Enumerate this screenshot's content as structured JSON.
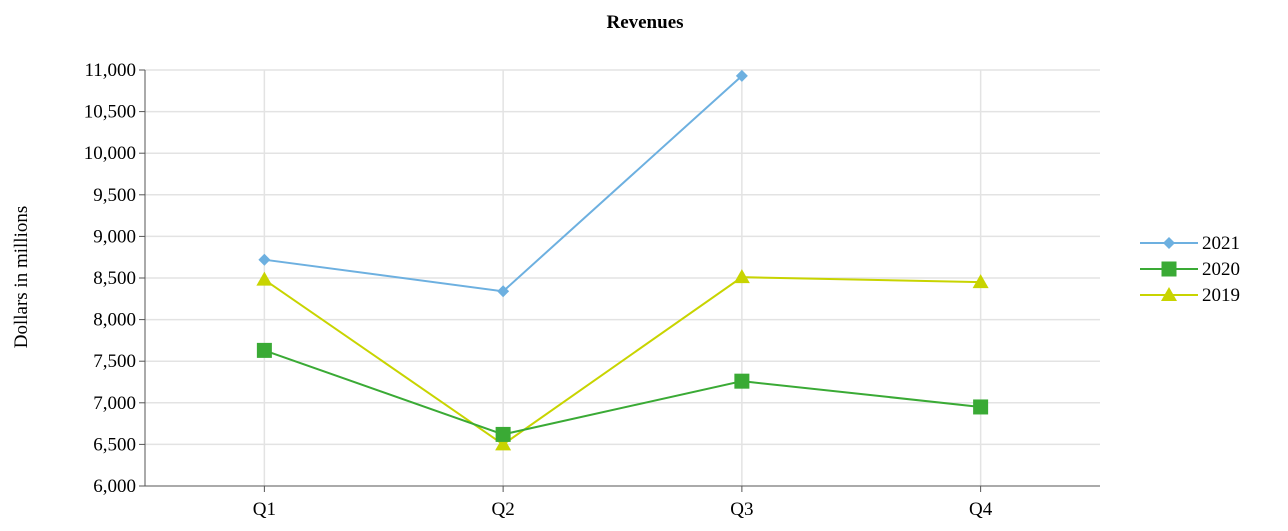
{
  "chart_data": {
    "type": "line",
    "title": "Revenues",
    "xlabel": "",
    "ylabel": "Dollars in millions",
    "categories": [
      "Q1",
      "Q2",
      "Q3",
      "Q4"
    ],
    "ylim": [
      6000,
      11000
    ],
    "yticks": [
      6000,
      6500,
      7000,
      7500,
      8000,
      8500,
      9000,
      9500,
      10000,
      10500,
      11000
    ],
    "ytick_labels": [
      "6,000",
      "6,500",
      "7,000",
      "7,500",
      "8,000",
      "8,500",
      "9,000",
      "9,500",
      "10,000",
      "10,500",
      "11,000"
    ],
    "grid": true,
    "legend_position": "right",
    "series": [
      {
        "name": "2021",
        "values": [
          8720,
          8340,
          10930,
          null
        ],
        "color": "#6db0e0",
        "marker": "diamond"
      },
      {
        "name": "2020",
        "values": [
          7630,
          6620,
          7260,
          6950
        ],
        "color": "#3aaa35",
        "marker": "square"
      },
      {
        "name": "2019",
        "values": [
          8480,
          6500,
          8510,
          8450
        ],
        "color": "#c8d400",
        "marker": "triangle"
      }
    ]
  }
}
